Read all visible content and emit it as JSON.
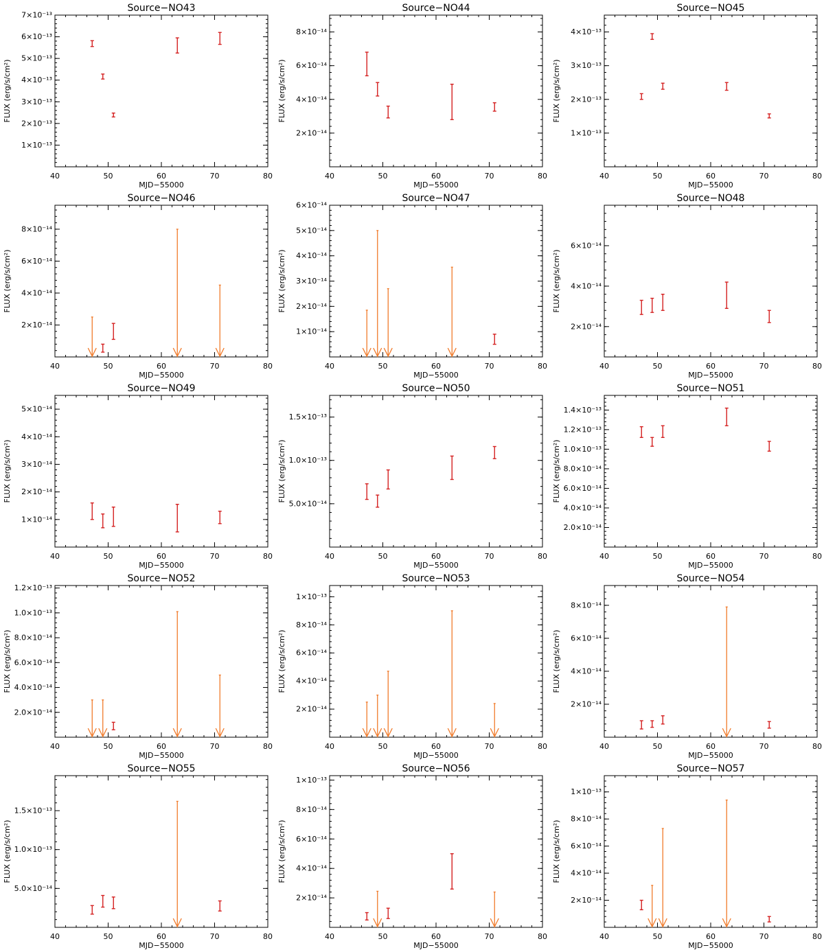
{
  "colors": {
    "detection": "#d42020",
    "upper_limit": "#f07a2a",
    "axis": "#000000"
  },
  "chart_data": [
    {
      "type": "scatter",
      "title": "Source−NO43",
      "xlabel": "MJD−55000",
      "ylabel": "FLUX (erg/s/cm²)",
      "xlim": [
        40,
        80
      ],
      "ylim": [
        0,
        7e-13
      ],
      "exp": -13,
      "yticks": [
        1,
        2,
        3,
        4,
        5,
        6,
        7
      ],
      "ytick_labels": [
        "1×10⁻¹³",
        "2×10⁻¹³",
        "3×10⁻¹³",
        "4×10⁻¹³",
        "5×10⁻¹³",
        "6×10⁻¹³",
        "7×10⁻¹³"
      ],
      "points": [
        {
          "x": 47,
          "lo": 5.55e-13,
          "hi": 5.82e-13
        },
        {
          "x": 49,
          "lo": 4.05e-13,
          "hi": 4.28e-13
        },
        {
          "x": 51,
          "lo": 2.3e-13,
          "hi": 2.48e-13
        },
        {
          "x": 63,
          "lo": 5.25e-13,
          "hi": 5.95e-13
        },
        {
          "x": 71,
          "lo": 5.65e-13,
          "hi": 6.2e-13
        }
      ],
      "upper_limits": []
    },
    {
      "type": "scatter",
      "title": "Source−NO44",
      "xlabel": "MJD−55000",
      "ylabel": "FLUX (erg/s/cm²)",
      "xlim": [
        40,
        80
      ],
      "ylim": [
        0,
        9e-14
      ],
      "exp": -14,
      "yticks": [
        2,
        4,
        6,
        8
      ],
      "ytick_labels": [
        "2×10⁻¹⁴",
        "4×10⁻¹⁴",
        "6×10⁻¹⁴",
        "8×10⁻¹⁴"
      ],
      "points": [
        {
          "x": 47,
          "lo": 5.4e-14,
          "hi": 6.8e-14
        },
        {
          "x": 49,
          "lo": 4.2e-14,
          "hi": 5e-14
        },
        {
          "x": 51,
          "lo": 2.9e-14,
          "hi": 3.6e-14
        },
        {
          "x": 63,
          "lo": 2.8e-14,
          "hi": 4.9e-14
        },
        {
          "x": 71,
          "lo": 3.3e-14,
          "hi": 3.8e-14
        }
      ],
      "upper_limits": []
    },
    {
      "type": "scatter",
      "title": "Source−NO45",
      "xlabel": "MJD−55000",
      "ylabel": "FLUX (erg/s/cm²)",
      "xlim": [
        40,
        80
      ],
      "ylim": [
        0,
        4.5e-13
      ],
      "exp": -13,
      "yticks": [
        1,
        2,
        3,
        4
      ],
      "ytick_labels": [
        "1×10⁻¹³",
        "2×10⁻¹³",
        "3×10⁻¹³",
        "4×10⁻¹³"
      ],
      "points": [
        {
          "x": 47,
          "lo": 2e-13,
          "hi": 2.17e-13
        },
        {
          "x": 49,
          "lo": 3.78e-13,
          "hi": 3.95e-13
        },
        {
          "x": 51,
          "lo": 2.3e-13,
          "hi": 2.48e-13
        },
        {
          "x": 63,
          "lo": 2.27e-13,
          "hi": 2.5e-13
        },
        {
          "x": 71,
          "lo": 1.45e-13,
          "hi": 1.57e-13
        }
      ],
      "upper_limits": []
    },
    {
      "type": "scatter",
      "title": "Source−NO46",
      "xlabel": "MJD−55000",
      "ylabel": "FLUX (erg/s/cm²)",
      "xlim": [
        40,
        80
      ],
      "ylim": [
        0,
        9.5e-14
      ],
      "exp": -14,
      "yticks": [
        2,
        4,
        6,
        8
      ],
      "ytick_labels": [
        "2×10⁻¹⁴",
        "4×10⁻¹⁴",
        "6×10⁻¹⁴",
        "8×10⁻¹⁴"
      ],
      "points": [
        {
          "x": 49,
          "lo": 3e-15,
          "hi": 8e-15
        },
        {
          "x": 51,
          "lo": 1.1e-14,
          "hi": 2.1e-14
        }
      ],
      "upper_limits": [
        {
          "x": 47,
          "value": 2.5e-14
        },
        {
          "x": 63,
          "value": 8e-14
        },
        {
          "x": 71,
          "value": 4.5e-14
        }
      ]
    },
    {
      "type": "scatter",
      "title": "Source−NO47",
      "xlabel": "MJD−55000",
      "ylabel": "FLUX (erg/s/cm²)",
      "xlim": [
        40,
        80
      ],
      "ylim": [
        0,
        6e-14
      ],
      "exp": -14,
      "yticks": [
        1,
        2,
        3,
        4,
        5,
        6
      ],
      "ytick_labels": [
        "1×10⁻¹⁴",
        "2×10⁻¹⁴",
        "3×10⁻¹⁴",
        "4×10⁻¹⁴",
        "5×10⁻¹⁴",
        "6×10⁻¹⁴"
      ],
      "points": [
        {
          "x": 71,
          "lo": 5e-15,
          "hi": 9e-15
        }
      ],
      "upper_limits": [
        {
          "x": 47,
          "value": 1.85e-14
        },
        {
          "x": 49,
          "value": 5e-14
        },
        {
          "x": 51,
          "value": 2.7e-14
        },
        {
          "x": 63,
          "value": 3.55e-14
        }
      ]
    },
    {
      "type": "scatter",
      "title": "Source−NO48",
      "xlabel": "MJD−55000",
      "ylabel": "FLUX (erg/s/cm²)",
      "xlim": [
        40,
        80
      ],
      "ylim": [
        5e-15,
        8e-14
      ],
      "exp": -14,
      "yticks": [
        2,
        4,
        6
      ],
      "ytick_labels": [
        "2×10⁻¹⁴",
        "4×10⁻¹⁴",
        "6×10⁻¹⁴"
      ],
      "points": [
        {
          "x": 47,
          "lo": 2.6e-14,
          "hi": 3.3e-14
        },
        {
          "x": 49,
          "lo": 2.7e-14,
          "hi": 3.4e-14
        },
        {
          "x": 51,
          "lo": 2.8e-14,
          "hi": 3.6e-14
        },
        {
          "x": 63,
          "lo": 2.9e-14,
          "hi": 4.2e-14
        },
        {
          "x": 71,
          "lo": 2.2e-14,
          "hi": 2.8e-14
        }
      ],
      "upper_limits": []
    },
    {
      "type": "scatter",
      "title": "Source−NO49",
      "xlabel": "MJD−55000",
      "ylabel": "FLUX (erg/s/cm²)",
      "xlim": [
        40,
        80
      ],
      "ylim": [
        0,
        5.5e-14
      ],
      "exp": -14,
      "yticks": [
        1,
        2,
        3,
        4,
        5
      ],
      "ytick_labels": [
        "1×10⁻¹⁴",
        "2×10⁻¹⁴",
        "3×10⁻¹⁴",
        "4×10⁻¹⁴",
        "5×10⁻¹⁴"
      ],
      "points": [
        {
          "x": 47,
          "lo": 1e-14,
          "hi": 1.6e-14
        },
        {
          "x": 49,
          "lo": 7e-15,
          "hi": 1.2e-14
        },
        {
          "x": 51,
          "lo": 7.5e-15,
          "hi": 1.45e-14
        },
        {
          "x": 63,
          "lo": 5.5e-15,
          "hi": 1.55e-14
        },
        {
          "x": 71,
          "lo": 8.5e-15,
          "hi": 1.3e-14
        }
      ],
      "upper_limits": []
    },
    {
      "type": "scatter",
      "title": "Source−NO50",
      "xlabel": "MJD−55000",
      "ylabel": "FLUX (erg/s/cm²)",
      "xlim": [
        40,
        80
      ],
      "ylim": [
        0,
        1.75e-13
      ],
      "exp": -13,
      "yticks": [
        0.5,
        1.0,
        1.5
      ],
      "ytick_labels": [
        "5.0×10⁻¹⁴",
        "1.0×10⁻¹³",
        "1.5×10⁻¹³"
      ],
      "points": [
        {
          "x": 47,
          "lo": 5.5e-14,
          "hi": 7.3e-14
        },
        {
          "x": 49,
          "lo": 4.6e-14,
          "hi": 6e-14
        },
        {
          "x": 51,
          "lo": 6.7e-14,
          "hi": 8.9e-14
        },
        {
          "x": 63,
          "lo": 7.8e-14,
          "hi": 1.05e-13
        },
        {
          "x": 71,
          "lo": 1.02e-13,
          "hi": 1.16e-13
        }
      ],
      "upper_limits": []
    },
    {
      "type": "scatter",
      "title": "Source−NO51",
      "xlabel": "MJD−55000",
      "ylabel": "FLUX (erg/s/cm²)",
      "xlim": [
        40,
        80
      ],
      "ylim": [
        0,
        1.55e-13
      ],
      "exp": -14,
      "yticks": [
        2,
        4,
        6,
        8,
        10,
        12,
        14
      ],
      "ytick_labels": [
        "2.0×10⁻¹⁴",
        "4.0×10⁻¹⁴",
        "6.0×10⁻¹⁴",
        "8.0×10⁻¹⁴",
        "1.0×10⁻¹³",
        "1.2×10⁻¹³",
        "1.4×10⁻¹³"
      ],
      "points": [
        {
          "x": 47,
          "lo": 1.12e-13,
          "hi": 1.23e-13
        },
        {
          "x": 49,
          "lo": 1.03e-13,
          "hi": 1.12e-13
        },
        {
          "x": 51,
          "lo": 1.12e-13,
          "hi": 1.24e-13
        },
        {
          "x": 63,
          "lo": 1.24e-13,
          "hi": 1.42e-13
        },
        {
          "x": 71,
          "lo": 9.8e-14,
          "hi": 1.08e-13
        }
      ],
      "upper_limits": []
    },
    {
      "type": "scatter",
      "title": "Source−NO52",
      "xlabel": "MJD−55000",
      "ylabel": "FLUX (erg/s/cm²)",
      "xlim": [
        40,
        80
      ],
      "ylim": [
        0,
        1.22e-13
      ],
      "exp": -14,
      "yticks": [
        2,
        4,
        6,
        8,
        10,
        12
      ],
      "ytick_labels": [
        "2.0×10⁻¹⁴",
        "4.0×10⁻¹⁴",
        "6.0×10⁻¹⁴",
        "8.0×10⁻¹⁴",
        "1.0×10⁻¹³",
        "1.2×10⁻¹³"
      ],
      "points": [
        {
          "x": 51,
          "lo": 6e-15,
          "hi": 1.2e-14
        }
      ],
      "upper_limits": [
        {
          "x": 47,
          "value": 3e-14
        },
        {
          "x": 49,
          "value": 3e-14
        },
        {
          "x": 63,
          "value": 1.01e-13
        },
        {
          "x": 71,
          "value": 5e-14
        }
      ]
    },
    {
      "type": "scatter",
      "title": "Source−NO53",
      "xlabel": "MJD−55000",
      "ylabel": "FLUX (erg/s/cm²)",
      "xlim": [
        40,
        80
      ],
      "ylim": [
        0,
        1.08e-13
      ],
      "exp": -14,
      "yticks": [
        2,
        4,
        6,
        8,
        10
      ],
      "ytick_labels": [
        "2×10⁻¹⁴",
        "4×10⁻¹⁴",
        "6×10⁻¹⁴",
        "8×10⁻¹⁴",
        "1×10⁻¹³"
      ],
      "points": [],
      "upper_limits": [
        {
          "x": 47,
          "value": 2.5e-14
        },
        {
          "x": 49,
          "value": 3e-14
        },
        {
          "x": 51,
          "value": 4.7e-14
        },
        {
          "x": 63,
          "value": 9e-14
        },
        {
          "x": 71,
          "value": 2.4e-14
        }
      ]
    },
    {
      "type": "scatter",
      "title": "Source−NO54",
      "xlabel": "MJD−55000",
      "ylabel": "FLUX (erg/s/cm²)",
      "xlim": [
        40,
        80
      ],
      "ylim": [
        0,
        9.2e-14
      ],
      "exp": -14,
      "yticks": [
        2,
        4,
        6,
        8
      ],
      "ytick_labels": [
        "2×10⁻¹⁴",
        "4×10⁻¹⁴",
        "6×10⁻¹⁴",
        "8×10⁻¹⁴"
      ],
      "points": [
        {
          "x": 47,
          "lo": 5e-15,
          "hi": 1e-14
        },
        {
          "x": 49,
          "lo": 6e-15,
          "hi": 1e-14
        },
        {
          "x": 51,
          "lo": 8e-15,
          "hi": 1.3e-14
        },
        {
          "x": 71,
          "lo": 5.5e-15,
          "hi": 9.5e-15
        }
      ],
      "upper_limits": [
        {
          "x": 63,
          "value": 7.9e-14
        }
      ]
    },
    {
      "type": "scatter",
      "title": "Source−NO55",
      "xlabel": "MJD−55000",
      "ylabel": "FLUX (erg/s/cm²)",
      "xlim": [
        40,
        80
      ],
      "ylim": [
        0,
        1.95e-13
      ],
      "exp": -13,
      "yticks": [
        0.5,
        1.0,
        1.5
      ],
      "ytick_labels": [
        "5.0×10⁻¹⁴",
        "1.0×10⁻¹³",
        "1.5×10⁻¹³"
      ],
      "points": [
        {
          "x": 47,
          "lo": 1.7e-14,
          "hi": 2.8e-14
        },
        {
          "x": 49,
          "lo": 2.6e-14,
          "hi": 4.1e-14
        },
        {
          "x": 51,
          "lo": 2.4e-14,
          "hi": 3.9e-14
        },
        {
          "x": 71,
          "lo": 2.1e-14,
          "hi": 3.4e-14
        }
      ],
      "upper_limits": [
        {
          "x": 63,
          "value": 1.62e-13
        }
      ]
    },
    {
      "type": "scatter",
      "title": "Source−NO56",
      "xlabel": "MJD−55000",
      "ylabel": "FLUX (erg/s/cm²)",
      "xlim": [
        40,
        80
      ],
      "ylim": [
        0,
        1.03e-13
      ],
      "exp": -14,
      "yticks": [
        2,
        4,
        6,
        8,
        10
      ],
      "ytick_labels": [
        "2×10⁻¹⁴",
        "4×10⁻¹⁴",
        "6×10⁻¹⁴",
        "8×10⁻¹⁴",
        "1×10⁻¹³"
      ],
      "points": [
        {
          "x": 47,
          "lo": 5e-15,
          "hi": 1e-14
        },
        {
          "x": 51,
          "lo": 6e-15,
          "hi": 1.3e-14
        },
        {
          "x": 63,
          "lo": 2.6e-14,
          "hi": 5e-14
        }
      ],
      "upper_limits": [
        {
          "x": 49,
          "value": 2.45e-14
        },
        {
          "x": 71,
          "value": 2.4e-14
        }
      ]
    },
    {
      "type": "scatter",
      "title": "Source−NO57",
      "xlabel": "MJD−55000",
      "ylabel": "FLUX (erg/s/cm²)",
      "xlim": [
        40,
        80
      ],
      "ylim": [
        0,
        1.12e-13
      ],
      "exp": -14,
      "yticks": [
        2,
        4,
        6,
        8,
        10
      ],
      "ytick_labels": [
        "2×10⁻¹⁴",
        "4×10⁻¹⁴",
        "6×10⁻¹⁴",
        "8×10⁻¹⁴",
        "1×10⁻¹³"
      ],
      "points": [
        {
          "x": 47,
          "lo": 1.3e-14,
          "hi": 2e-14
        },
        {
          "x": 71,
          "lo": 4e-15,
          "hi": 8e-15
        }
      ],
      "upper_limits": [
        {
          "x": 49,
          "value": 3.1e-14
        },
        {
          "x": 51,
          "value": 7.3e-14
        },
        {
          "x": 63,
          "value": 9.4e-14
        }
      ]
    }
  ]
}
